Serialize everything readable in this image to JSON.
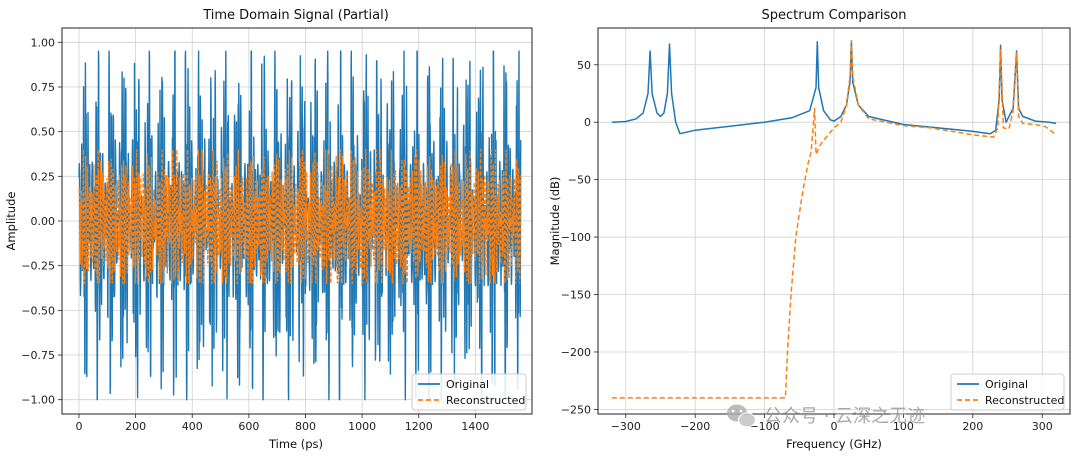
{
  "chart_data": [
    {
      "type": "line",
      "title": "Time Domain Signal (Partial)",
      "xlabel": "Time (ps)",
      "ylabel": "Amplitude",
      "xlim": [
        -60,
        1600
      ],
      "ylim": [
        -1.08,
        1.08
      ],
      "xticks": [
        0,
        200,
        400,
        600,
        800,
        1000,
        1200,
        1400
      ],
      "xtick_labels": [
        "0",
        "200",
        "400",
        "600",
        "800",
        "1000",
        "1200",
        "1400"
      ],
      "yticks": [
        1.0,
        0.75,
        0.5,
        0.25,
        0.0,
        -0.25,
        -0.5,
        -0.75,
        -1.0
      ],
      "ytick_labels": [
        "1.00",
        "0.75",
        "0.50",
        "0.25",
        "0.00",
        "−0.25",
        "−0.50",
        "−0.75",
        "−1.00"
      ],
      "grid": true,
      "legend_position": "lower-right",
      "x_range": [
        0,
        1560
      ],
      "series": [
        {
          "name": "Original",
          "color": "#1f77b4",
          "style": "solid",
          "amplitude_envelope": [
            -1.0,
            0.95
          ],
          "burst_period_ps": 45
        },
        {
          "name": "Reconstructed",
          "color": "#ff7f0e",
          "style": "dashed",
          "amplitude_envelope": [
            -0.35,
            0.4
          ],
          "burst_period_ps": 45
        }
      ]
    },
    {
      "type": "line",
      "title": "Spectrum Comparison",
      "xlabel": "Frequency (GHz)",
      "ylabel": "Magnitude (dB)",
      "xlim": [
        -340,
        340
      ],
      "ylim": [
        -254,
        82
      ],
      "xticks": [
        -300,
        -200,
        -100,
        0,
        100,
        200,
        300
      ],
      "xtick_labels": [
        "−300",
        "−200",
        "−100",
        "0",
        "100",
        "200",
        "300"
      ],
      "yticks": [
        50,
        0,
        -50,
        -100,
        -150,
        -200,
        -250
      ],
      "ytick_labels": [
        "50",
        "0",
        "−50",
        "−100",
        "−150",
        "−200",
        "−250"
      ],
      "grid": true,
      "legend_position": "lower-right",
      "series": [
        {
          "name": "Original",
          "color": "#1f77b4",
          "style": "solid",
          "points": [
            [
              -320,
              0
            ],
            [
              -300,
              0.6
            ],
            [
              -285,
              3
            ],
            [
              -275,
              8
            ],
            [
              -268,
              25
            ],
            [
              -265,
              62
            ],
            [
              -262,
              25
            ],
            [
              -255,
              8
            ],
            [
              -250,
              5
            ],
            [
              -245,
              8
            ],
            [
              -240,
              25
            ],
            [
              -237,
              68
            ],
            [
              -234,
              25
            ],
            [
              -228,
              0
            ],
            [
              -222,
              -10
            ],
            [
              -200,
              -7
            ],
            [
              -150,
              -3.5
            ],
            [
              -100,
              0
            ],
            [
              -60,
              4
            ],
            [
              -35,
              10
            ],
            [
              -26,
              30
            ],
            [
              -24,
              70
            ],
            [
              -22,
              30
            ],
            [
              -15,
              10
            ],
            [
              -5,
              2
            ],
            [
              0,
              1
            ],
            [
              10,
              5
            ],
            [
              18,
              15
            ],
            [
              23,
              35
            ],
            [
              25,
              70
            ],
            [
              27,
              35
            ],
            [
              35,
              15
            ],
            [
              50,
              5
            ],
            [
              100,
              -2
            ],
            [
              150,
              -5
            ],
            [
              200,
              -8
            ],
            [
              225,
              -10
            ],
            [
              233,
              -7
            ],
            [
              238,
              20
            ],
            [
              240,
              67
            ],
            [
              242,
              20
            ],
            [
              248,
              0
            ],
            [
              258,
              12
            ],
            [
              263,
              62
            ],
            [
              266,
              12
            ],
            [
              272,
              5
            ],
            [
              290,
              1
            ],
            [
              310,
              0
            ],
            [
              320,
              -1
            ]
          ]
        },
        {
          "name": "Reconstructed",
          "color": "#ff7f0e",
          "style": "dashed",
          "points": [
            [
              -320,
              -240
            ],
            [
              -70,
              -240
            ],
            [
              -67,
              -200
            ],
            [
              -62,
              -150
            ],
            [
              -55,
              -100
            ],
            [
              -45,
              -60
            ],
            [
              -37,
              -35
            ],
            [
              -33,
              -26
            ],
            [
              -28,
              12
            ],
            [
              -26,
              -28
            ],
            [
              -20,
              -20
            ],
            [
              -10,
              -12
            ],
            [
              0,
              -5
            ],
            [
              10,
              0
            ],
            [
              18,
              15
            ],
            [
              23,
              40
            ],
            [
              25,
              71
            ],
            [
              27,
              40
            ],
            [
              35,
              15
            ],
            [
              50,
              3
            ],
            [
              100,
              -3
            ],
            [
              140,
              -5
            ],
            [
              150,
              -6
            ],
            [
              160,
              -7
            ],
            [
              200,
              -11
            ],
            [
              230,
              -13
            ],
            [
              236,
              -5
            ],
            [
              240,
              63
            ],
            [
              244,
              -5
            ],
            [
              252,
              -6
            ],
            [
              258,
              10
            ],
            [
              263,
              60
            ],
            [
              266,
              5
            ],
            [
              272,
              -1
            ],
            [
              290,
              -2
            ],
            [
              305,
              -4
            ],
            [
              318,
              -10
            ]
          ]
        }
      ]
    }
  ],
  "legend": {
    "original_label": "Original",
    "reconstructed_label": "Reconstructed"
  },
  "watermark": {
    "text": "公众号 · 云深之无迹",
    "icon": "wechat-icon"
  }
}
